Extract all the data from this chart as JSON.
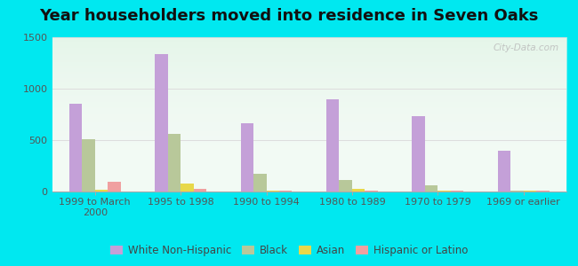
{
  "title": "Year householders moved into residence in Seven Oaks",
  "categories": [
    "1999 to March\n2000",
    "1995 to 1998",
    "1990 to 1994",
    "1980 to 1989",
    "1970 to 1979",
    "1969 or earlier"
  ],
  "series": {
    "White Non-Hispanic": [
      850,
      1340,
      660,
      900,
      730,
      400
    ],
    "Black": [
      510,
      560,
      175,
      110,
      60,
      10
    ],
    "Asian": [
      20,
      75,
      10,
      30,
      10,
      5
    ],
    "Hispanic or Latino": [
      95,
      30,
      10,
      10,
      5,
      5
    ]
  },
  "colors": {
    "White Non-Hispanic": "#c4a0d8",
    "Black": "#b8c89a",
    "Asian": "#e8d84a",
    "Hispanic or Latino": "#f0a0a0"
  },
  "ylim": [
    0,
    1500
  ],
  "yticks": [
    0,
    500,
    1000,
    1500
  ],
  "background_outer": "#00e8f0",
  "background_top": "#e8f5ee",
  "background_bottom": "#f8fff8",
  "grid_color": "#dddddd",
  "watermark": "City-Data.com",
  "title_fontsize": 13,
  "tick_fontsize": 8,
  "legend_fontsize": 8.5,
  "bar_width": 0.15
}
